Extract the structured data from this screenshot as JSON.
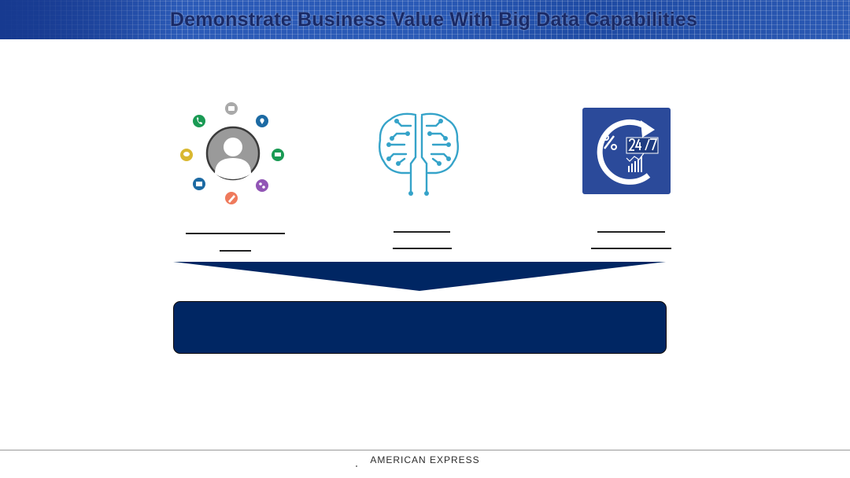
{
  "slide": {
    "title": "Demonstrate Business Value With Big Data Capabilities",
    "footer_brand": "AMERICAN EXPRESS"
  },
  "icons": {
    "customer": "customer-profile-icon",
    "brain": "circuit-brain-icon",
    "realtime": "realtime-24-7-icon"
  },
  "satellite_icons": [
    "folder-icon",
    "location-pin-icon",
    "cart-icon",
    "link-icon",
    "pencil-icon",
    "mail-icon",
    "chat-icon",
    "phone-icon"
  ],
  "colors": {
    "navy": "#002663",
    "banner_blue": "#2c5bb8",
    "brain_teal": "#35a3c9",
    "tile_blue": "#2b4a9a"
  }
}
